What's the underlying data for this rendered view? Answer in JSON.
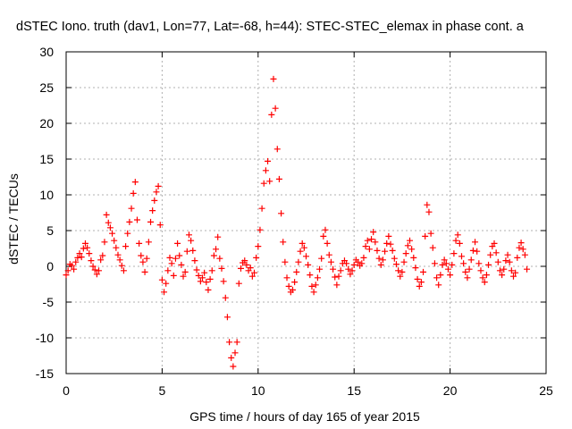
{
  "chart_data": {
    "type": "scatter",
    "title": "dSTEC Iono. truth (dav1, Lon=77, Lat=-68, h=44): STEC-STEC_elemax in phase cont. a",
    "xlabel": "GPS time / hours of day 165 of year 2015",
    "ylabel": "dSTEC  / TECUs",
    "xlim": [
      0,
      25
    ],
    "ylim": [
      -15,
      30
    ],
    "xticks": [
      0,
      5,
      10,
      15,
      20,
      25
    ],
    "yticks": [
      -15,
      -10,
      -5,
      0,
      5,
      10,
      15,
      20,
      25,
      30
    ],
    "grid": true,
    "marker": "+",
    "marker_color": "#ff0000",
    "series": [
      {
        "points": [
          [
            0.0,
            -1.2
          ],
          [
            0.1,
            -0.6
          ],
          [
            0.2,
            0.3
          ],
          [
            0.3,
            0.1
          ],
          [
            0.4,
            -0.4
          ],
          [
            0.5,
            0.6
          ],
          [
            0.6,
            1.2
          ],
          [
            0.7,
            1.8
          ],
          [
            0.8,
            1.3
          ],
          [
            0.9,
            2.5
          ],
          [
            1.0,
            3.2
          ],
          [
            1.1,
            2.6
          ],
          [
            1.2,
            1.8
          ],
          [
            1.3,
            0.8
          ],
          [
            1.4,
            0.0
          ],
          [
            1.5,
            -0.5
          ],
          [
            1.6,
            -1.1
          ],
          [
            1.7,
            -0.6
          ],
          [
            1.8,
            0.9
          ],
          [
            1.9,
            1.5
          ],
          [
            2.0,
            3.4
          ],
          [
            2.1,
            7.2
          ],
          [
            2.2,
            6.1
          ],
          [
            2.3,
            5.4
          ],
          [
            2.4,
            4.6
          ],
          [
            2.5,
            3.6
          ],
          [
            2.6,
            2.6
          ],
          [
            2.7,
            1.6
          ],
          [
            2.8,
            0.9
          ],
          [
            2.9,
            0.1
          ],
          [
            3.0,
            -0.6
          ],
          [
            3.1,
            2.8
          ],
          [
            3.2,
            4.6
          ],
          [
            3.3,
            6.2
          ],
          [
            3.4,
            8.1
          ],
          [
            3.5,
            10.2
          ],
          [
            3.6,
            11.8
          ],
          [
            3.7,
            6.5
          ],
          [
            3.8,
            3.2
          ],
          [
            3.9,
            1.5
          ],
          [
            4.0,
            0.6
          ],
          [
            4.1,
            -0.8
          ],
          [
            4.2,
            1.1
          ],
          [
            4.3,
            3.4
          ],
          [
            4.4,
            6.2
          ],
          [
            4.5,
            7.8
          ],
          [
            4.6,
            9.2
          ],
          [
            4.7,
            10.4
          ],
          [
            4.8,
            11.2
          ],
          [
            4.9,
            5.8
          ],
          [
            5.0,
            -1.9
          ],
          [
            5.1,
            -3.6
          ],
          [
            5.2,
            -2.4
          ],
          [
            5.3,
            -0.6
          ],
          [
            5.4,
            1.2
          ],
          [
            5.5,
            0.4
          ],
          [
            5.6,
            -1.3
          ],
          [
            5.7,
            1.1
          ],
          [
            5.8,
            3.2
          ],
          [
            5.9,
            1.5
          ],
          [
            6.0,
            0.2
          ],
          [
            6.1,
            -1.4
          ],
          [
            6.2,
            -0.8
          ],
          [
            6.3,
            2.1
          ],
          [
            6.4,
            4.4
          ],
          [
            6.5,
            3.6
          ],
          [
            6.6,
            2.2
          ],
          [
            6.7,
            0.8
          ],
          [
            6.8,
            -0.5
          ],
          [
            6.9,
            -1.3
          ],
          [
            7.0,
            -2.1
          ],
          [
            7.1,
            -1.6
          ],
          [
            7.2,
            -0.9
          ],
          [
            7.3,
            -2.2
          ],
          [
            7.4,
            -3.3
          ],
          [
            7.5,
            -1.8
          ],
          [
            7.6,
            -0.6
          ],
          [
            7.7,
            1.5
          ],
          [
            7.8,
            2.4
          ],
          [
            7.9,
            4.1
          ],
          [
            8.0,
            1.1
          ],
          [
            8.1,
            -0.3
          ],
          [
            8.2,
            -2.1
          ],
          [
            8.3,
            -4.4
          ],
          [
            8.4,
            -7.1
          ],
          [
            8.5,
            -10.6
          ],
          [
            8.6,
            -12.8
          ],
          [
            8.7,
            -14.0
          ],
          [
            8.8,
            -12.1
          ],
          [
            8.9,
            -10.6
          ],
          [
            9.0,
            -2.4
          ],
          [
            9.1,
            -0.3
          ],
          [
            9.2,
            0.5
          ],
          [
            9.3,
            0.8
          ],
          [
            9.4,
            0.2
          ],
          [
            9.5,
            -0.6
          ],
          [
            9.6,
            -0.2
          ],
          [
            9.7,
            -1.4
          ],
          [
            9.8,
            -0.9
          ],
          [
            9.9,
            1.2
          ],
          [
            10.0,
            2.8
          ],
          [
            10.1,
            5.1
          ],
          [
            10.2,
            8.1
          ],
          [
            10.3,
            11.6
          ],
          [
            10.4,
            13.4
          ],
          [
            10.5,
            14.7
          ],
          [
            10.6,
            11.9
          ],
          [
            10.7,
            21.2
          ],
          [
            10.8,
            26.2
          ],
          [
            10.9,
            22.1
          ],
          [
            11.0,
            16.4
          ],
          [
            11.1,
            12.2
          ],
          [
            11.2,
            7.4
          ],
          [
            11.3,
            3.4
          ],
          [
            11.4,
            0.6
          ],
          [
            11.5,
            -1.6
          ],
          [
            11.6,
            -2.8
          ],
          [
            11.7,
            -3.6
          ],
          [
            11.8,
            -3.3
          ],
          [
            11.9,
            -2.2
          ],
          [
            12.0,
            -0.8
          ],
          [
            12.1,
            0.6
          ],
          [
            12.2,
            2.1
          ],
          [
            12.3,
            3.2
          ],
          [
            12.4,
            2.6
          ],
          [
            12.5,
            1.4
          ],
          [
            12.6,
            0.2
          ],
          [
            12.7,
            -1.2
          ],
          [
            12.8,
            -2.8
          ],
          [
            12.9,
            -3.6
          ],
          [
            13.0,
            -2.6
          ],
          [
            13.1,
            -1.6
          ],
          [
            13.2,
            -0.4
          ],
          [
            13.3,
            1.1
          ],
          [
            13.4,
            4.2
          ],
          [
            13.5,
            5.1
          ],
          [
            13.6,
            3.2
          ],
          [
            13.7,
            1.6
          ],
          [
            13.8,
            0.6
          ],
          [
            13.9,
            -0.4
          ],
          [
            14.0,
            -1.5
          ],
          [
            14.1,
            -2.6
          ],
          [
            14.2,
            -1.4
          ],
          [
            14.3,
            -0.6
          ],
          [
            14.4,
            0.4
          ],
          [
            14.5,
            0.8
          ],
          [
            14.6,
            0.4
          ],
          [
            14.7,
            -0.4
          ],
          [
            14.8,
            -1.1
          ],
          [
            14.9,
            -0.6
          ],
          [
            15.0,
            0.2
          ],
          [
            15.1,
            0.9
          ],
          [
            15.2,
            0.6
          ],
          [
            15.3,
            0.1
          ],
          [
            15.4,
            0.4
          ],
          [
            15.5,
            1.2
          ],
          [
            15.6,
            2.8
          ],
          [
            15.7,
            3.6
          ],
          [
            15.8,
            2.4
          ],
          [
            15.9,
            3.8
          ],
          [
            16.0,
            4.8
          ],
          [
            16.1,
            3.4
          ],
          [
            16.2,
            2.2
          ],
          [
            16.3,
            1.1
          ],
          [
            16.4,
            0.2
          ],
          [
            16.5,
            0.9
          ],
          [
            16.6,
            2.1
          ],
          [
            16.7,
            3.2
          ],
          [
            16.8,
            4.2
          ],
          [
            16.9,
            3.1
          ],
          [
            17.0,
            2.2
          ],
          [
            17.1,
            1.1
          ],
          [
            17.2,
            0.3
          ],
          [
            17.3,
            -0.6
          ],
          [
            17.4,
            -1.4
          ],
          [
            17.5,
            -0.8
          ],
          [
            17.6,
            0.6
          ],
          [
            17.7,
            1.8
          ],
          [
            17.8,
            2.9
          ],
          [
            17.9,
            3.6
          ],
          [
            18.0,
            2.4
          ],
          [
            18.1,
            1.2
          ],
          [
            18.2,
            -0.2
          ],
          [
            18.3,
            -1.8
          ],
          [
            18.4,
            -2.8
          ],
          [
            18.5,
            -2.2
          ],
          [
            18.6,
            -0.8
          ],
          [
            18.7,
            4.2
          ],
          [
            18.8,
            8.6
          ],
          [
            18.9,
            7.6
          ],
          [
            19.0,
            4.6
          ],
          [
            19.1,
            2.6
          ],
          [
            19.2,
            0.4
          ],
          [
            19.3,
            -1.6
          ],
          [
            19.4,
            -2.6
          ],
          [
            19.5,
            -1.2
          ],
          [
            19.6,
            0.2
          ],
          [
            19.7,
            0.9
          ],
          [
            19.8,
            0.4
          ],
          [
            19.9,
            -0.4
          ],
          [
            20.0,
            -1.2
          ],
          [
            20.1,
            0.2
          ],
          [
            20.2,
            1.8
          ],
          [
            20.3,
            3.6
          ],
          [
            20.4,
            4.4
          ],
          [
            20.5,
            3.2
          ],
          [
            20.6,
            1.4
          ],
          [
            20.7,
            0.4
          ],
          [
            20.8,
            -0.8
          ],
          [
            20.9,
            -1.6
          ],
          [
            21.0,
            -0.4
          ],
          [
            21.1,
            0.9
          ],
          [
            21.2,
            2.2
          ],
          [
            21.3,
            3.4
          ],
          [
            21.4,
            2.1
          ],
          [
            21.5,
            0.4
          ],
          [
            21.6,
            -0.6
          ],
          [
            21.7,
            -1.6
          ],
          [
            21.8,
            -2.2
          ],
          [
            21.9,
            -1.2
          ],
          [
            22.0,
            0.2
          ],
          [
            22.1,
            1.6
          ],
          [
            22.2,
            2.8
          ],
          [
            22.3,
            3.2
          ],
          [
            22.4,
            1.9
          ],
          [
            22.5,
            0.6
          ],
          [
            22.6,
            -0.6
          ],
          [
            22.7,
            -1.2
          ],
          [
            22.8,
            -0.4
          ],
          [
            22.9,
            0.8
          ],
          [
            23.0,
            1.6
          ],
          [
            23.1,
            0.6
          ],
          [
            23.2,
            -0.6
          ],
          [
            23.3,
            -1.4
          ],
          [
            23.4,
            -0.9
          ],
          [
            23.5,
            1.2
          ],
          [
            23.6,
            2.6
          ],
          [
            23.7,
            3.3
          ],
          [
            23.8,
            2.4
          ],
          [
            23.9,
            1.6
          ],
          [
            24.0,
            -0.4
          ]
        ]
      }
    ]
  }
}
